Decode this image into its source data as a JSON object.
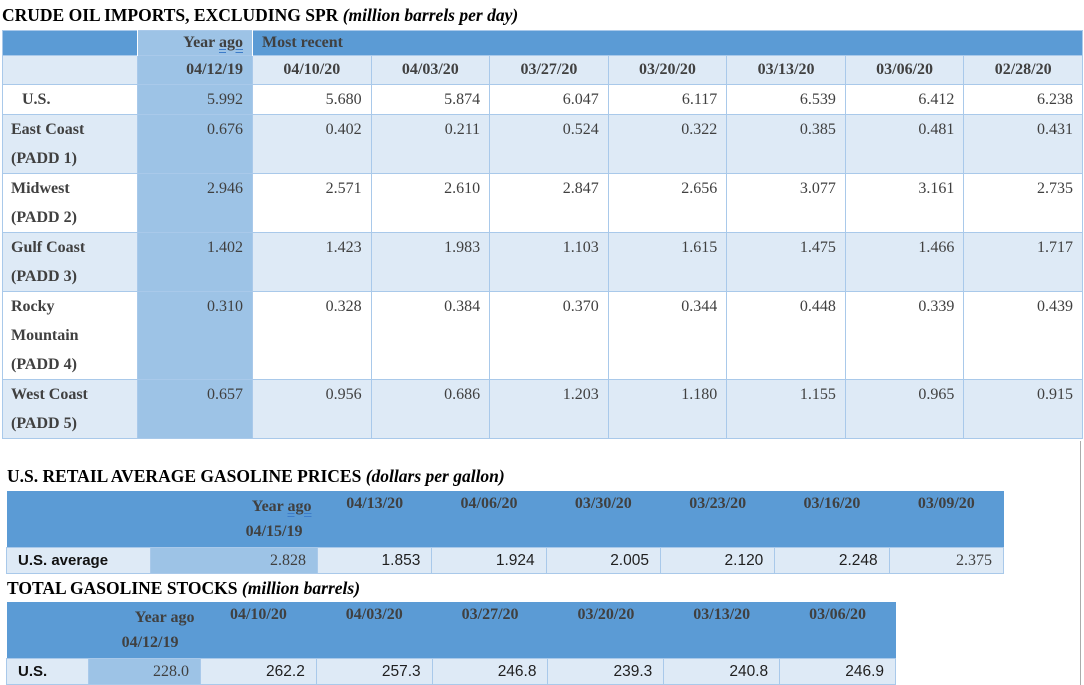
{
  "tables": [
    {
      "title": "CRUDE OIL IMPORTS, EXCLUDING SPR",
      "subtitle": "(million barrels per day)",
      "header": {
        "year_ago_label": "Year",
        "year_ago_link_word": "ago",
        "most_recent_label": "Most recent",
        "year_ago_date": "04/12/19",
        "dates": [
          "04/10/20",
          "04/03/20",
          "03/27/20",
          "03/20/20",
          "03/13/20",
          "03/06/20",
          "02/28/20"
        ]
      },
      "rows": [
        {
          "label_lines": [
            "U.S."
          ],
          "year_ago": "5.992",
          "values": [
            "5.680",
            "5.874",
            "6.047",
            "6.117",
            "6.539",
            "6.412",
            "6.238"
          ]
        },
        {
          "label_lines": [
            "East Coast",
            "(PADD 1)"
          ],
          "year_ago": "0.676",
          "values": [
            "0.402",
            "0.211",
            "0.524",
            "0.322",
            "0.385",
            "0.481",
            "0.431"
          ]
        },
        {
          "label_lines": [
            "Midwest",
            "(PADD 2)"
          ],
          "year_ago": "2.946",
          "values": [
            "2.571",
            "2.610",
            "2.847",
            "2.656",
            "3.077",
            "3.161",
            "2.735"
          ]
        },
        {
          "label_lines": [
            "Gulf Coast",
            "(PADD 3)"
          ],
          "year_ago": "1.402",
          "values": [
            "1.423",
            "1.983",
            "1.103",
            "1.615",
            "1.475",
            "1.466",
            "1.717"
          ]
        },
        {
          "label_lines": [
            "Rocky",
            "Mountain",
            "(PADD 4)"
          ],
          "year_ago": "0.310",
          "values": [
            "0.328",
            "0.384",
            "0.370",
            "0.344",
            "0.448",
            "0.339",
            "0.439"
          ]
        },
        {
          "label_lines": [
            "West Coast",
            "(PADD 5)"
          ],
          "year_ago": "0.657",
          "values": [
            "0.956",
            "0.686",
            "1.203",
            "1.180",
            "1.155",
            "0.965",
            "0.915"
          ]
        }
      ]
    },
    {
      "title": "U.S. RETAIL AVERAGE GASOLINE PRICES",
      "subtitle": "(dollars per gallon)",
      "header": {
        "year_ago_label": "Year",
        "year_ago_link_word": "ago",
        "year_ago_date": "04/15/19",
        "dates": [
          "04/13/20",
          "04/06/20",
          "03/30/20",
          "03/23/20",
          "03/16/20",
          "03/09/20"
        ]
      },
      "rows": [
        {
          "label_lines": [
            "U.S. average"
          ],
          "year_ago": "2.828",
          "values": [
            "1.853",
            "1.924",
            "2.005",
            "2.120",
            "2.248",
            "2.375"
          ]
        }
      ]
    },
    {
      "title": "TOTAL GASOLINE STOCKS",
      "subtitle": "(million barrels)",
      "header": {
        "year_ago_label": "Year ago",
        "year_ago_link_word": "",
        "year_ago_date": "04/12/19",
        "dates": [
          "04/10/20",
          "04/03/20",
          "03/27/20",
          "03/20/20",
          "03/13/20",
          "03/06/20"
        ]
      },
      "rows": [
        {
          "label_lines": [
            "U.S."
          ],
          "year_ago": "228.0",
          "values": [
            "262.2",
            "257.3",
            "246.8",
            "239.3",
            "240.8",
            "246.9"
          ]
        }
      ]
    }
  ]
}
